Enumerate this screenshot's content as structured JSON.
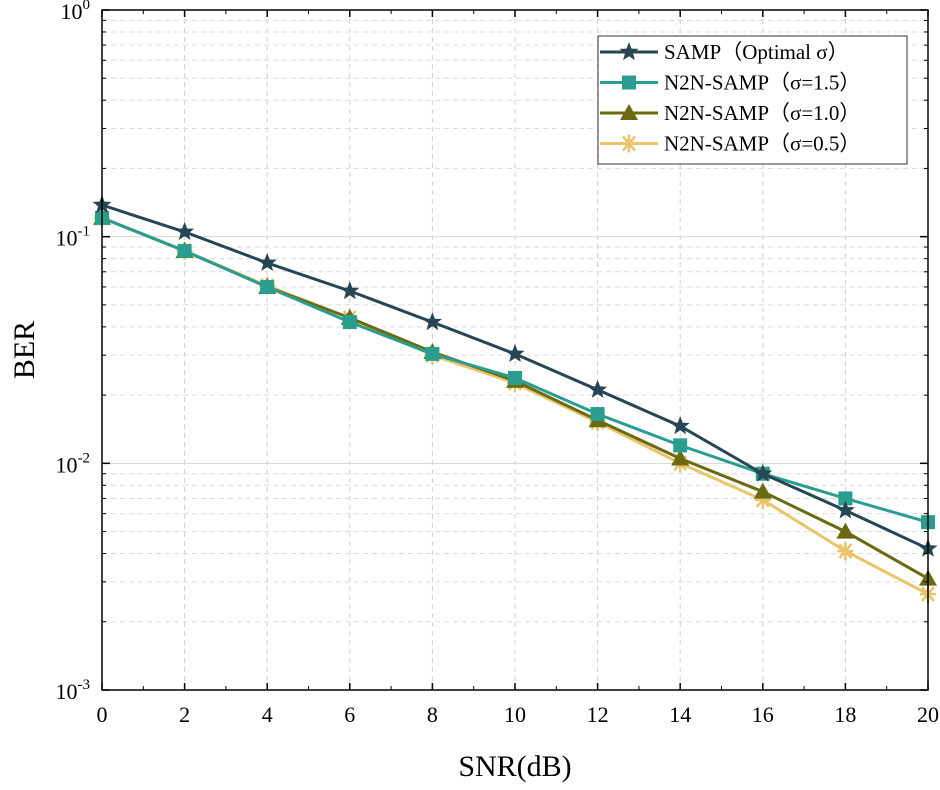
{
  "chart_data": {
    "type": "line",
    "title": "",
    "xlabel": "SNR(dB)",
    "ylabel": "BER",
    "xlim": [
      0,
      20
    ],
    "ylim": [
      0.001,
      1
    ],
    "yscale": "log",
    "grid": true,
    "legend_position": "top-right",
    "x": [
      0,
      2,
      4,
      6,
      8,
      10,
      12,
      14,
      16,
      18,
      20
    ],
    "x_ticks": [
      "0",
      "2",
      "4",
      "6",
      "8",
      "10",
      "12",
      "14",
      "16",
      "18",
      "20"
    ],
    "y_ticks": [
      {
        "base": "10",
        "exp": "0",
        "value": 1
      },
      {
        "base": "10",
        "exp": "-1",
        "value": 0.1
      },
      {
        "base": "10",
        "exp": "-2",
        "value": 0.01
      },
      {
        "base": "10",
        "exp": "-3",
        "value": 0.001
      }
    ],
    "series": [
      {
        "name": "SAMP（Optimal σ）",
        "color": "#264653",
        "marker": "star",
        "values": [
          0.138,
          0.105,
          0.0766,
          0.0576,
          0.042,
          0.0304,
          0.0211,
          0.0146,
          0.009,
          0.0062,
          0.0042
        ]
      },
      {
        "name": "N2N-SAMP（σ=1.5）",
        "color": "#2a9d8f",
        "marker": "square",
        "values": [
          0.121,
          0.0865,
          0.06,
          0.042,
          0.0304,
          0.0238,
          0.0165,
          0.012,
          0.009,
          0.007,
          0.0055
        ]
      },
      {
        "name": "N2N-SAMP（σ=1.0）",
        "color": "#6b6a12",
        "marker": "triangle",
        "values": [
          0.121,
          0.0865,
          0.06,
          0.0438,
          0.031,
          0.0231,
          0.0155,
          0.0105,
          0.0075,
          0.005,
          0.0031
        ]
      },
      {
        "name": "N2N-SAMP（σ=0.5）",
        "color": "#e9c46a",
        "marker": "asterisk",
        "values": [
          0.121,
          0.0865,
          0.0607,
          0.0438,
          0.03,
          0.0226,
          0.0152,
          0.01,
          0.0069,
          0.0041,
          0.00265
        ]
      }
    ]
  }
}
